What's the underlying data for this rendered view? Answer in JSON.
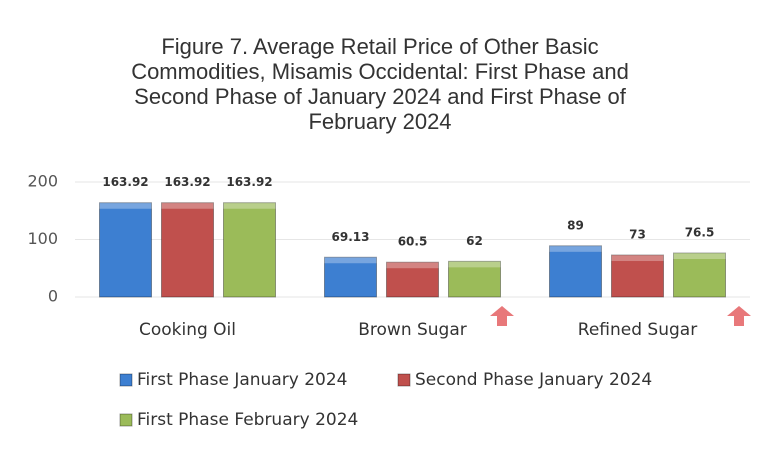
{
  "chart_data": {
    "type": "bar",
    "title": "Figure 7. Average Retail Price of Other Basic Commodities, Misamis Occidental: First Phase and Second Phase of January 2024 and First Phase of February 2024",
    "categories": [
      "Cooking Oil",
      "Brown Sugar",
      "Refined Sugar"
    ],
    "series": [
      {
        "name": "First Phase January 2024",
        "color": "#3d7fd1",
        "values": [
          163.92,
          69.13,
          89
        ]
      },
      {
        "name": "Second Phase January 2024",
        "color": "#c0504d",
        "values": [
          163.92,
          60.5,
          73
        ]
      },
      {
        "name": "First Phase February 2024",
        "color": "#9bbb59",
        "values": [
          163.92,
          62,
          76.5
        ]
      }
    ],
    "ylim": [
      0,
      200
    ],
    "yticks": [
      0,
      100,
      200
    ],
    "grid": true
  }
}
